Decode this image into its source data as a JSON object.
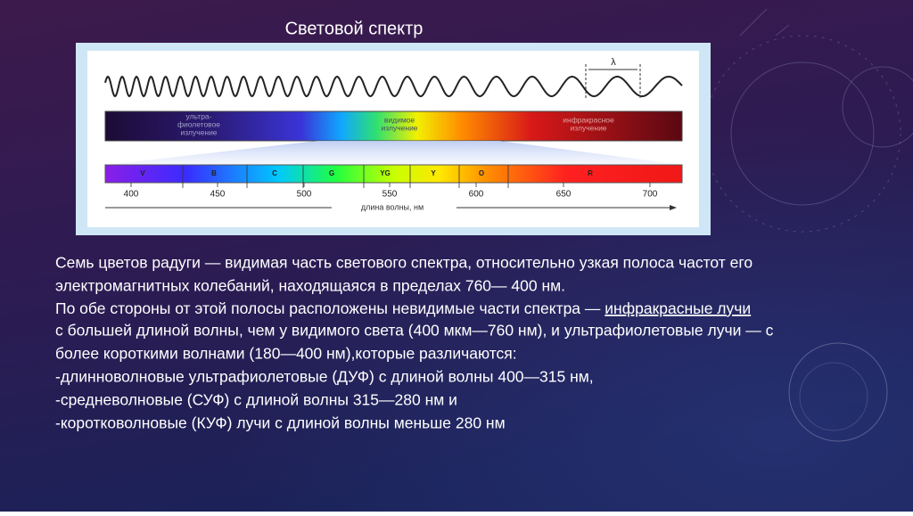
{
  "slide": {
    "title": "Световой спектр",
    "figure": {
      "lambda": "λ",
      "uv_label": [
        "ультра-",
        "фиолетовое",
        "излучение"
      ],
      "visible_label": [
        "видимое",
        "излучение"
      ],
      "ir_label": [
        "инфракрасное",
        "излучение"
      ],
      "colors": [
        "V",
        "B",
        "C",
        "G",
        "YG",
        "Y",
        "O",
        "R"
      ],
      "ticks": [
        "400",
        "450",
        "500",
        "550",
        "600",
        "650",
        "700"
      ],
      "axis_label": "длина волны, нм"
    },
    "body": {
      "lines": [
        "Семь цветов радуги —  видимая часть светового спектра, относительно узкая полоса частот его",
        "электромагнитных колебаний, находящаяся в пределах 760— 400 нм.",
        "По обе стороны от этой полосы расположены невидимые части спектра — ",
        " с большей длиной волны, чем у видимого света (400 мкм—760 нм), и ультрафиолетовые лучи — с",
        "более короткими волнами (180—400 нм),которые различаются:",
        "-длинноволновые ультрафиолетовые (ДУФ) с длиной волны 400—315 нм,",
        "-средневолновые (СУФ) с длиной волны 315—280 нм и",
        "-коротковолновые (КУФ) лучи с длиной волны меньше 280 нм"
      ],
      "link": "инфракрасные лучи"
    }
  }
}
